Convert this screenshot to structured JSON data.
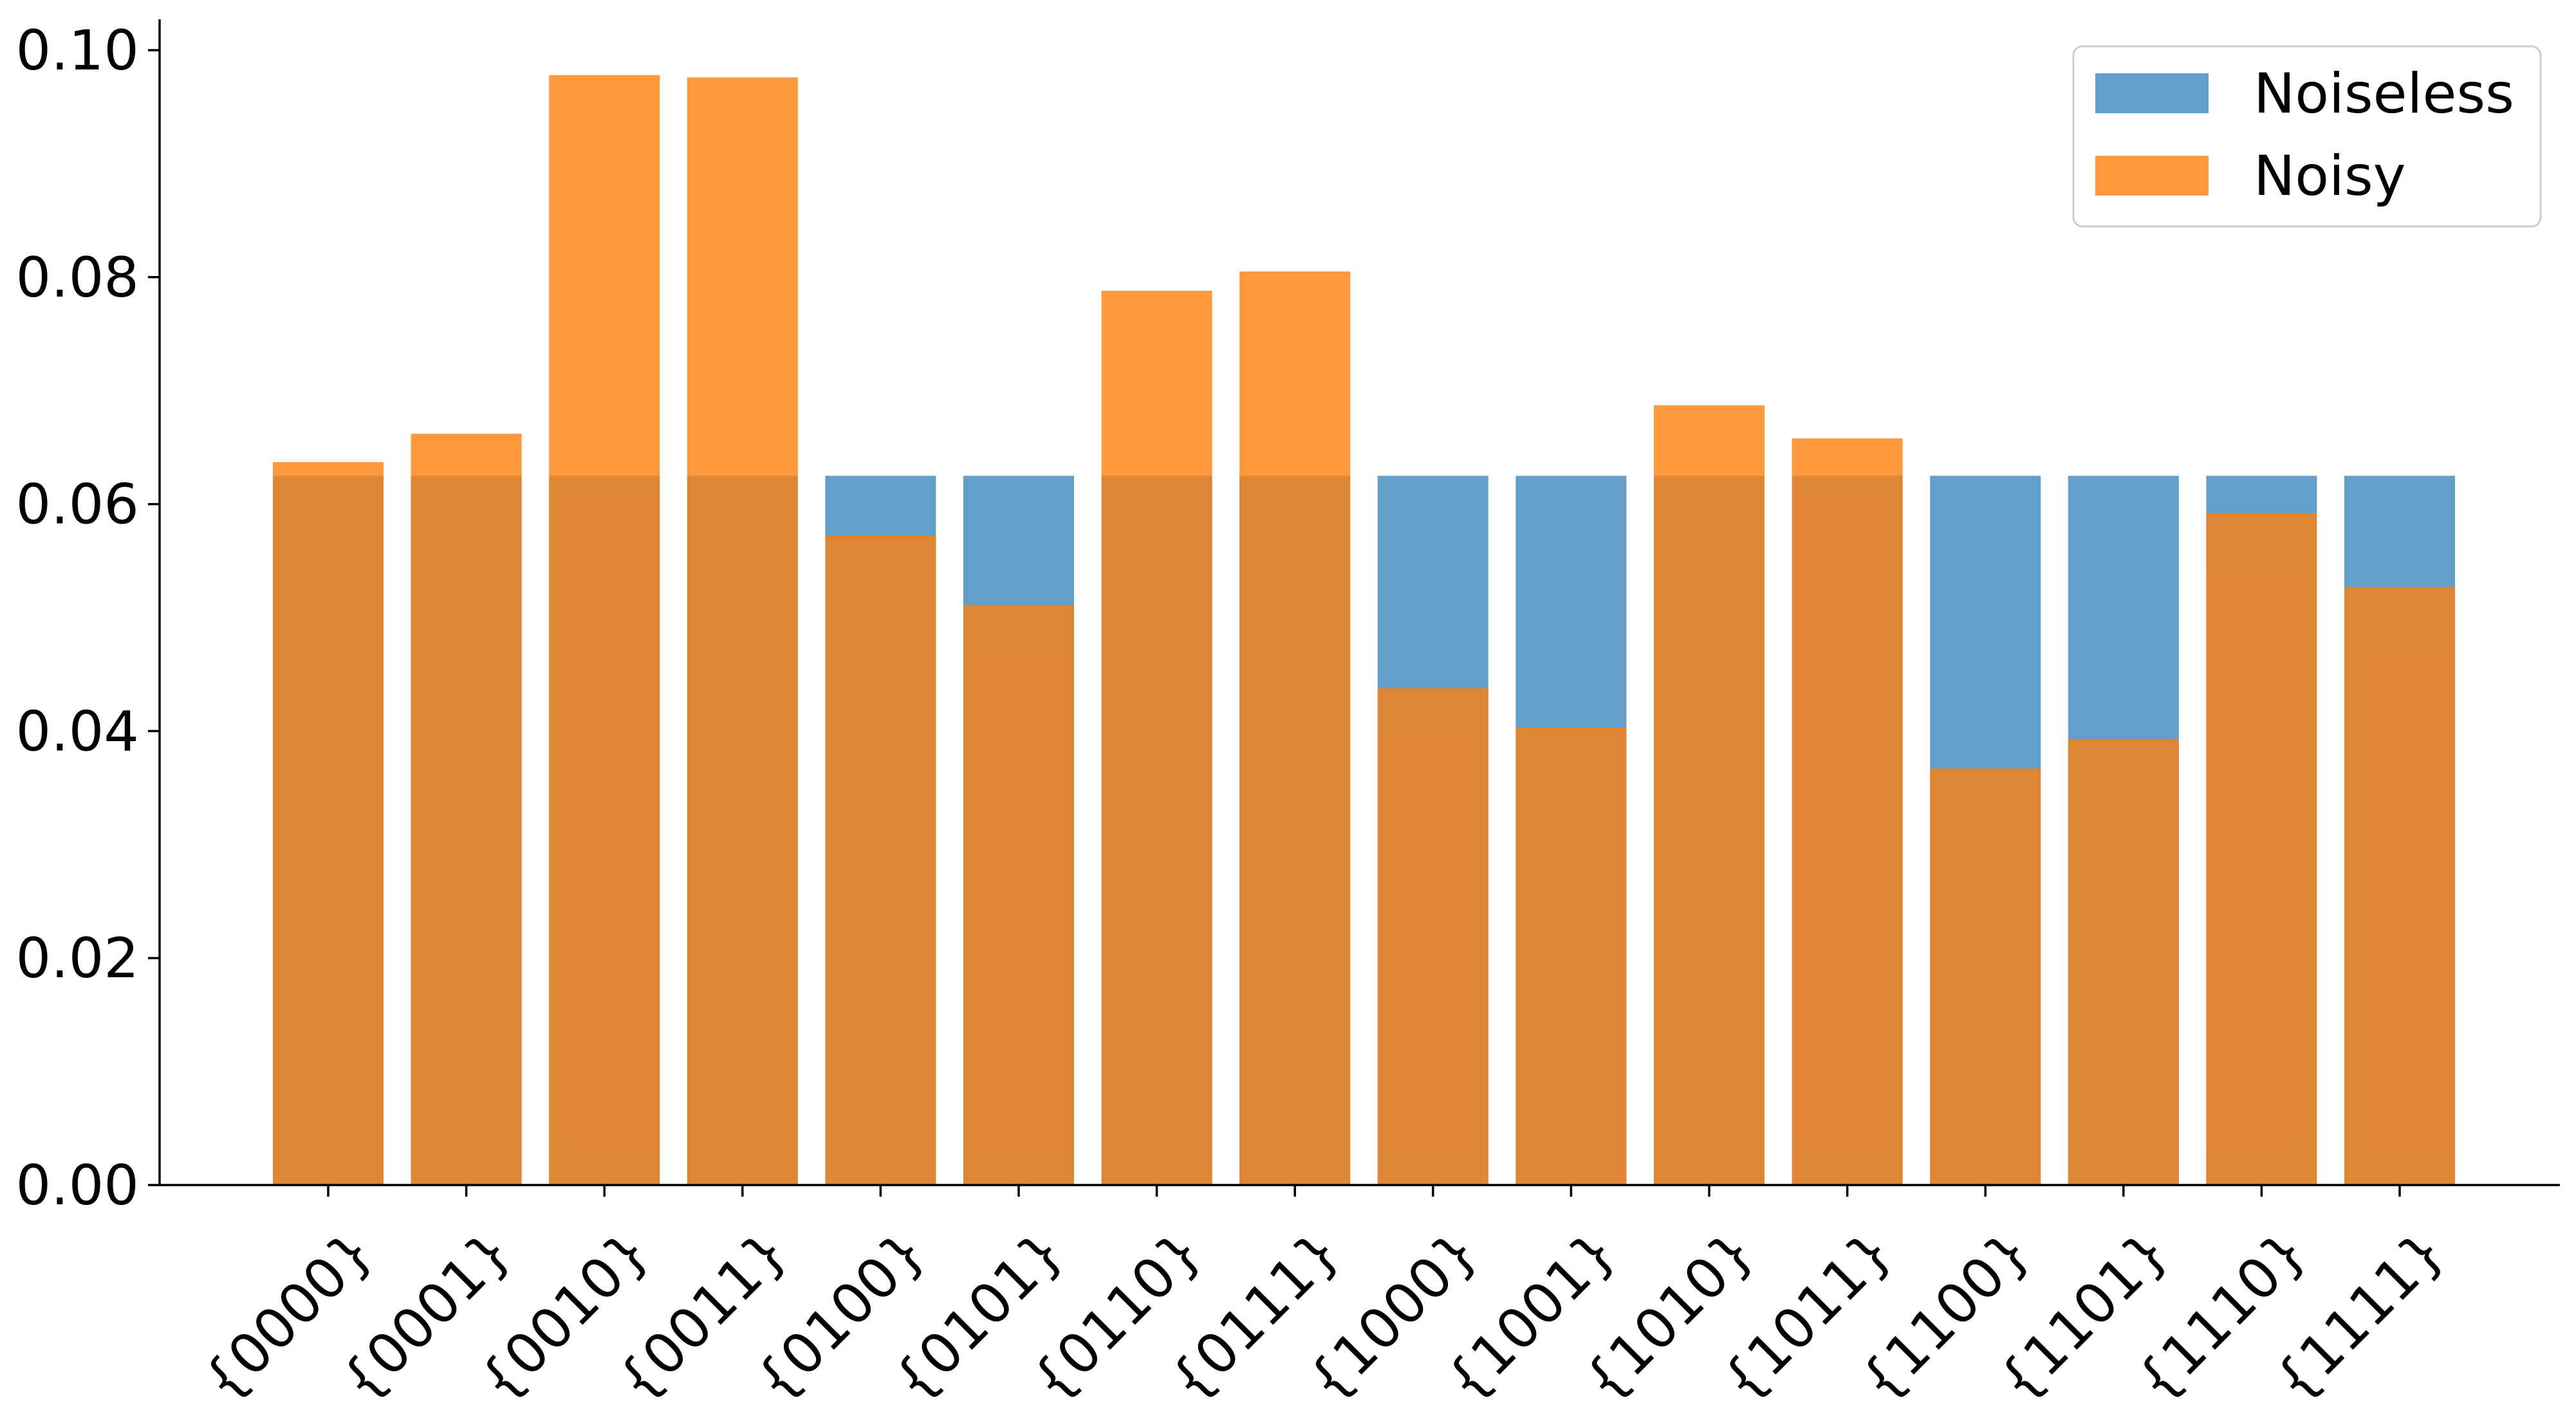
{
  "chart_data": {
    "type": "bar",
    "title": "",
    "xlabel": "",
    "ylabel": "",
    "categories": [
      "{0000}",
      "{0001}",
      "{0010}",
      "{0011}",
      "{0100}",
      "{0101}",
      "{0110}",
      "{0111}",
      "{1000}",
      "{1001}",
      "{1010}",
      "{1011}",
      "{1100}",
      "{1101}",
      "{1110}",
      "{1111}"
    ],
    "series": [
      {
        "name": "Noiseless",
        "color": "#1f77b4",
        "alpha": 0.7,
        "values": [
          0.0625,
          0.0625,
          0.0625,
          0.0625,
          0.0625,
          0.0625,
          0.0625,
          0.0625,
          0.0625,
          0.0625,
          0.0625,
          0.0625,
          0.0625,
          0.0625,
          0.0625,
          0.0625
        ]
      },
      {
        "name": "Noisy",
        "color": "#ff7f0e",
        "alpha": 0.8,
        "values": [
          0.0637,
          0.0662,
          0.0978,
          0.0976,
          0.0572,
          0.0511,
          0.0788,
          0.0805,
          0.0438,
          0.0403,
          0.0687,
          0.0658,
          0.0367,
          0.0393,
          0.0592,
          0.0527
        ]
      }
    ],
    "ylim": [
      0,
      0.1
    ],
    "yticks": [
      "0.00",
      "0.02",
      "0.04",
      "0.06",
      "0.08",
      "0.10"
    ],
    "ytick_values": [
      0,
      0.02,
      0.04,
      0.06,
      0.08,
      0.1
    ],
    "grid": false,
    "legend_position": "top-right"
  }
}
